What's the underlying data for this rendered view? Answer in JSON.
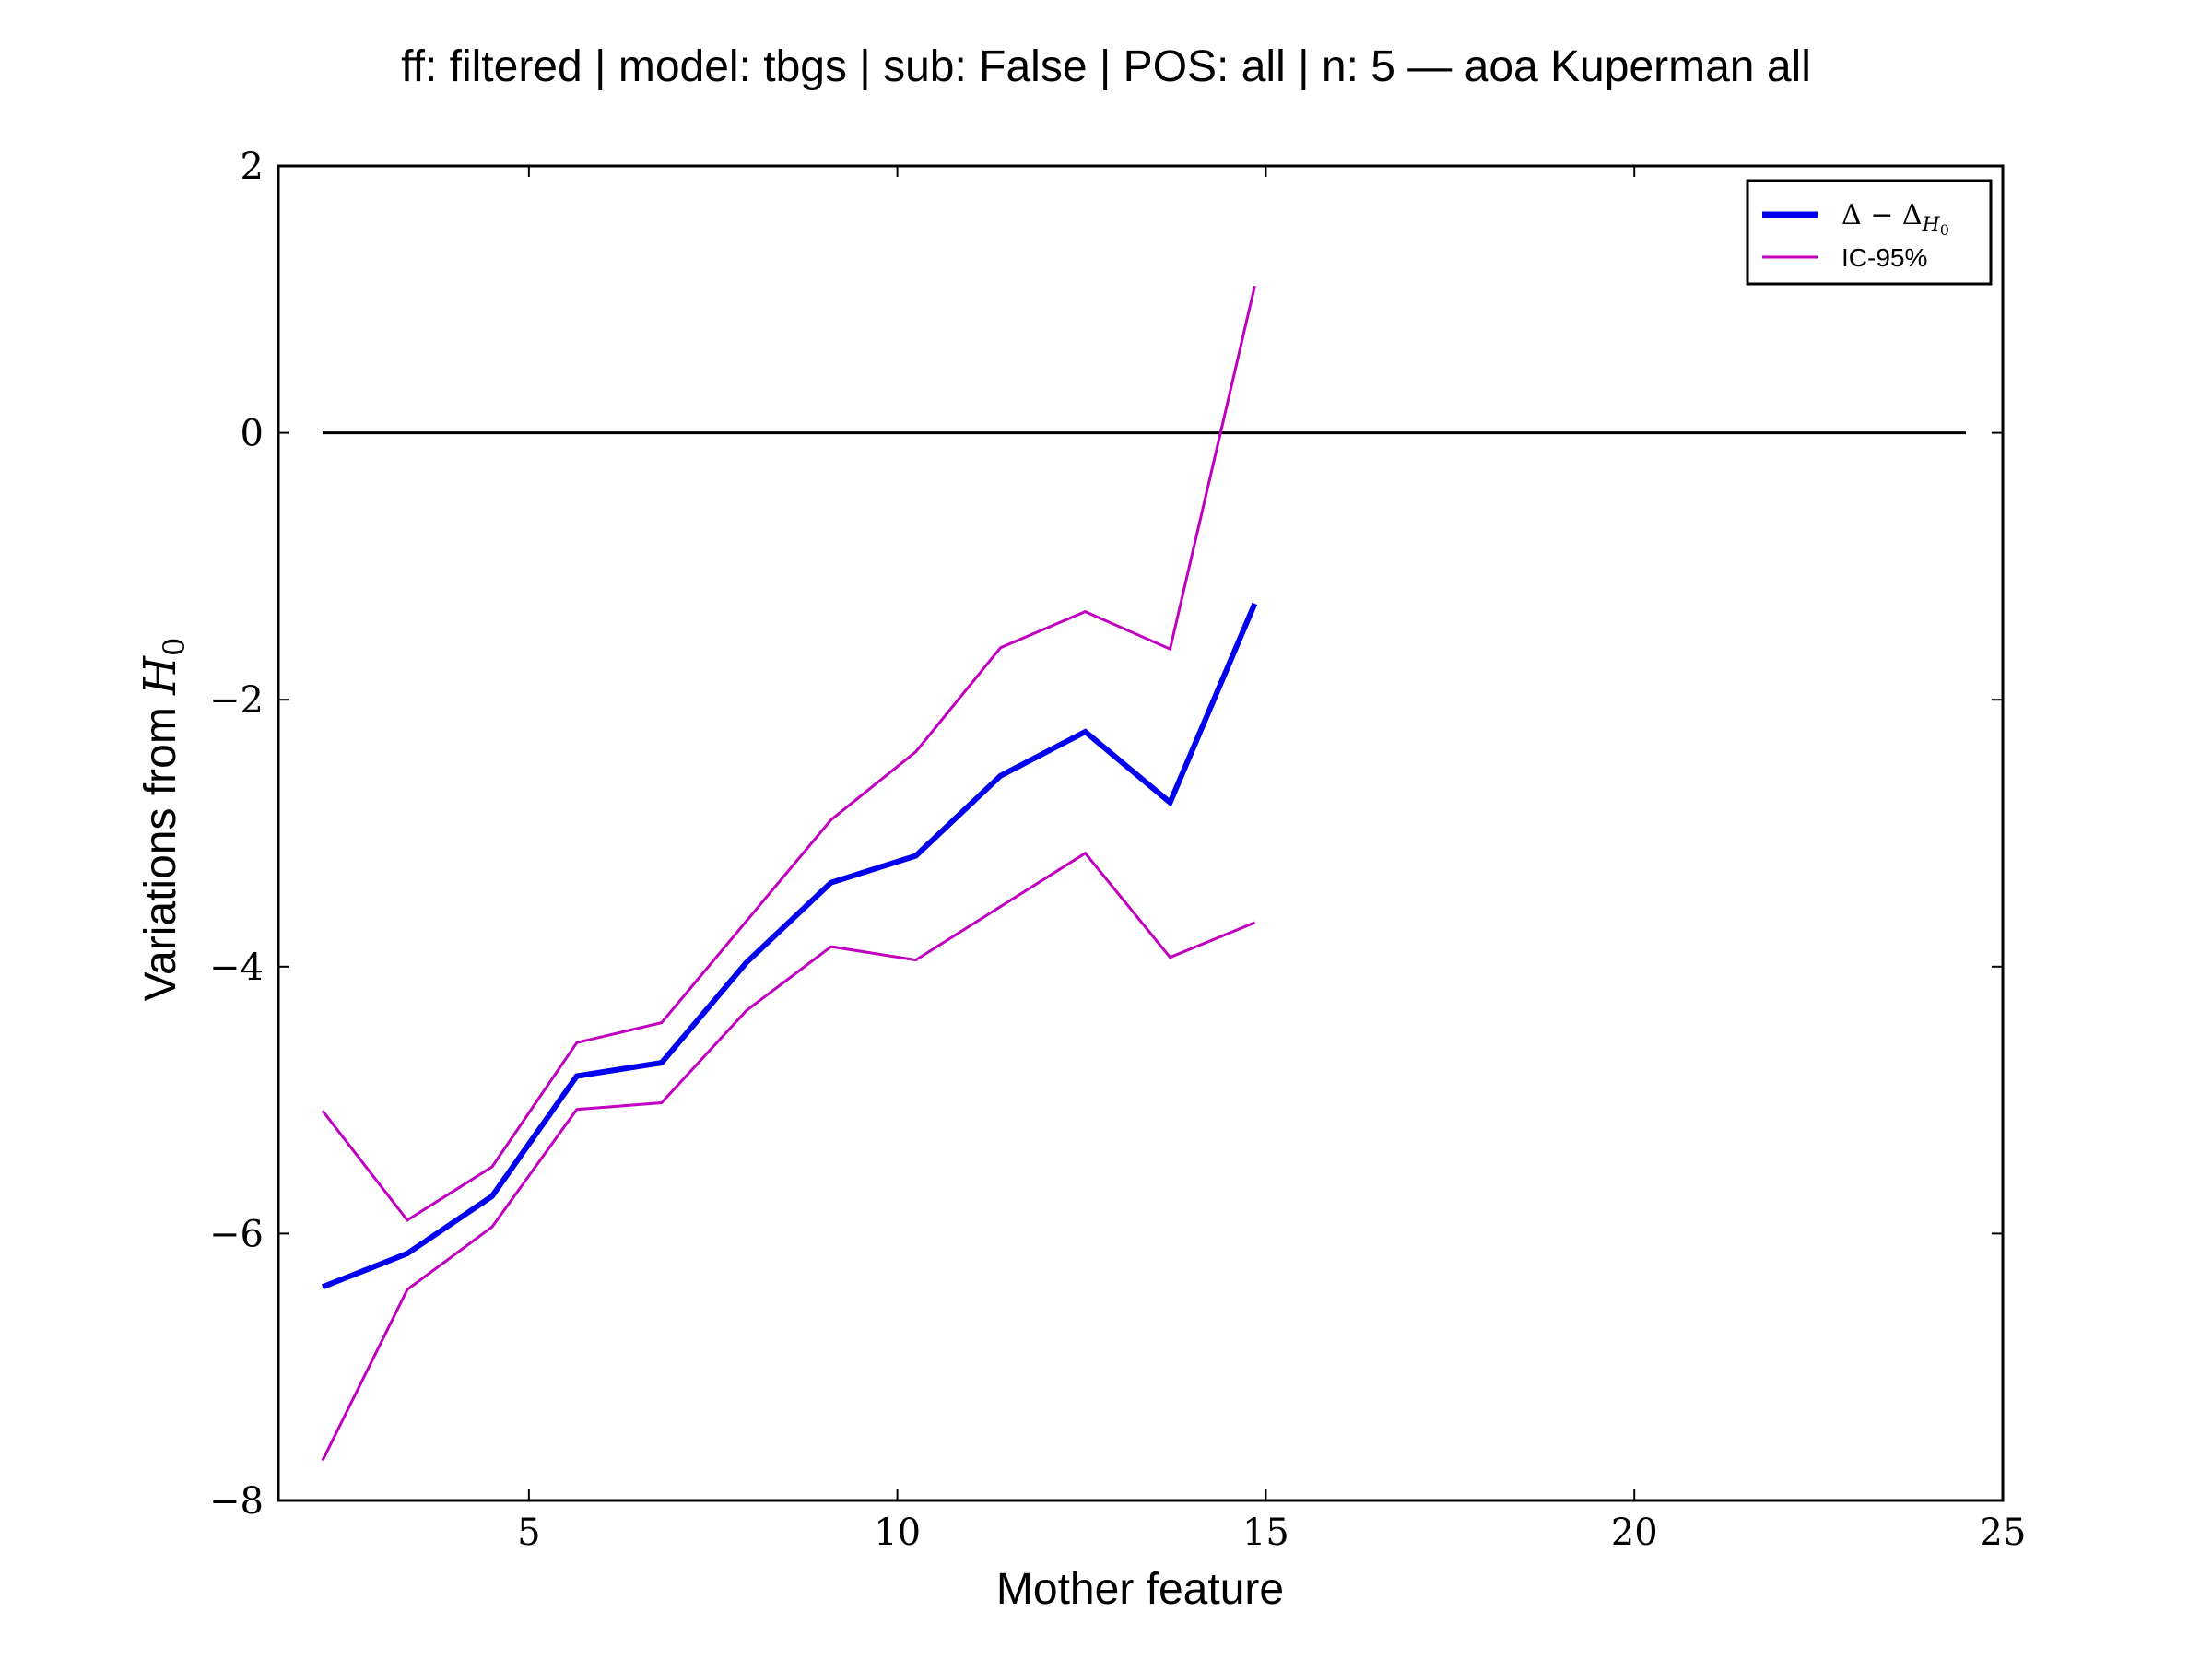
{
  "chart_data": {
    "type": "line",
    "title": "ff: filtered | model: tbgs | sub: False | POS: all | n: 5 — aoa Kuperman all",
    "xlabel": "Mother feature",
    "ylabel_text": "Variations from ",
    "ylabel_math": "H",
    "ylabel_math_sub": "0",
    "xlim": [
      1.6,
      25
    ],
    "ylim": [
      -8,
      2
    ],
    "xticks": [
      5,
      10,
      15,
      20,
      25
    ],
    "yticks": [
      2,
      0,
      -2,
      -4,
      -6,
      -8
    ],
    "xtick_labels": [
      "5",
      "10",
      "15",
      "20",
      "25"
    ],
    "ytick_labels": [
      "2",
      "0",
      "−2",
      "−4",
      "−6",
      "−8"
    ],
    "grid": false,
    "legend_position": "top-right",
    "reference_line": {
      "x": [
        2.2,
        24.5
      ],
      "y": [
        0,
        0
      ],
      "color": "#000000"
    },
    "x": [
      2.2,
      3.35,
      4.5,
      5.65,
      6.8,
      7.95,
      9.1,
      10.25,
      11.4,
      12.55,
      13.7,
      14.85
    ],
    "series": [
      {
        "name_math": "Δ − Δ",
        "name_math_sub": "H",
        "name_math_subsub": "0",
        "color": "#0000ee",
        "values": [
          -6.4,
          -6.15,
          -5.72,
          -4.82,
          -4.72,
          -3.97,
          -3.37,
          -3.17,
          -2.57,
          -2.24,
          -2.77,
          -1.28
        ]
      },
      {
        "name": "IC-95%",
        "color": "#bf00bf",
        "values": [
          -5.08,
          -5.9,
          -5.5,
          -4.57,
          -4.42,
          -3.66,
          -2.9,
          -2.39,
          -1.61,
          -1.34,
          -1.62,
          1.1
        ]
      },
      {
        "color": "#bf00bf",
        "values": [
          -7.7,
          -6.42,
          -5.95,
          -5.07,
          -5.02,
          -4.33,
          -3.85,
          -3.95,
          -3.55,
          -3.15,
          -3.93,
          -3.67
        ]
      }
    ]
  }
}
